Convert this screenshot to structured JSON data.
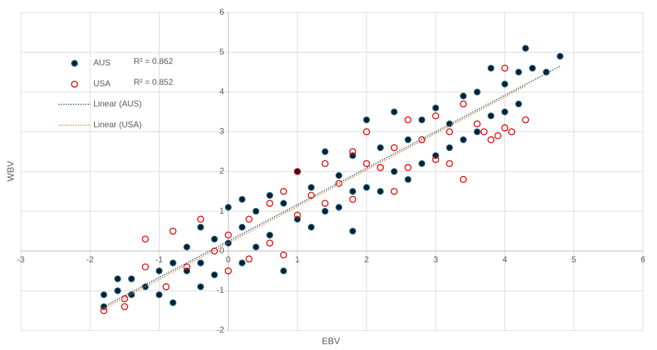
{
  "chart_data": {
    "type": "scatter",
    "x_label": "EBV",
    "y_label": "WBV",
    "xlim": [
      -3,
      6
    ],
    "ylim": [
      -2,
      6
    ],
    "xticks": [
      -3,
      -2,
      -1,
      0,
      1,
      2,
      3,
      4,
      5,
      6
    ],
    "yticks": [
      -2,
      -1,
      0,
      1,
      2,
      3,
      4,
      5,
      6
    ],
    "grid": true,
    "legend": "upper-left",
    "series": [
      {
        "name": "AUS",
        "color": "#0b1f2e",
        "edge": "#2a6f8f",
        "r2_label": "R² = 0.862",
        "x": [
          -1.8,
          -1.8,
          -1.6,
          -1.6,
          -1.4,
          -1.4,
          -1.2,
          -1.0,
          -1.0,
          -0.8,
          -0.8,
          -0.6,
          -0.6,
          -0.4,
          -0.4,
          -0.2,
          -0.2,
          0.0,
          0.0,
          0.2,
          0.2,
          0.4,
          0.4,
          0.6,
          0.6,
          0.8,
          0.8,
          1.0,
          1.0,
          1.2,
          1.2,
          1.4,
          1.4,
          1.6,
          1.6,
          1.8,
          1.8,
          2.0,
          2.0,
          2.2,
          2.2,
          2.4,
          2.4,
          2.6,
          2.6,
          2.8,
          2.8,
          3.0,
          3.0,
          3.2,
          3.2,
          3.4,
          3.4,
          3.6,
          3.6,
          3.8,
          3.8,
          4.0,
          4.0,
          4.2,
          4.2,
          4.3,
          4.4,
          4.6,
          4.8,
          1.8,
          -0.4,
          0.2
        ],
        "values": [
          -1.4,
          -1.1,
          -1.0,
          -0.7,
          -0.7,
          -1.1,
          -0.9,
          -0.5,
          -1.1,
          -1.3,
          -0.3,
          -0.5,
          0.1,
          -0.3,
          0.6,
          0.3,
          -0.6,
          0.2,
          1.1,
          0.6,
          -0.3,
          1.0,
          0.1,
          1.4,
          0.4,
          1.2,
          -0.5,
          2.0,
          0.8,
          1.6,
          0.6,
          2.5,
          1.0,
          1.9,
          1.1,
          2.4,
          1.5,
          3.3,
          1.6,
          2.6,
          1.5,
          3.5,
          2.0,
          2.8,
          1.8,
          3.3,
          2.2,
          3.6,
          2.4,
          3.2,
          2.6,
          3.9,
          2.8,
          4.0,
          3.0,
          4.6,
          3.4,
          4.2,
          3.5,
          4.5,
          3.7,
          5.1,
          4.6,
          4.5,
          4.9,
          0.5,
          -0.9,
          1.3
        ]
      },
      {
        "name": "USA",
        "color": "#e00000",
        "edge": "#e00000",
        "r2_label": "R² = 0.852",
        "x": [
          -1.8,
          -1.5,
          -1.5,
          -1.2,
          -1.2,
          -0.8,
          -0.9,
          -0.6,
          -0.4,
          -0.2,
          0.0,
          0.0,
          0.3,
          0.3,
          0.6,
          0.6,
          0.8,
          0.8,
          1.0,
          1.0,
          1.2,
          1.4,
          1.4,
          1.6,
          1.8,
          1.8,
          2.0,
          2.0,
          2.2,
          2.4,
          2.4,
          2.6,
          2.6,
          2.8,
          3.0,
          3.0,
          3.2,
          3.2,
          3.4,
          3.4,
          3.6,
          3.8,
          3.9,
          4.0,
          4.0,
          4.1,
          4.3,
          3.7
        ],
        "values": [
          -1.5,
          -1.4,
          -1.2,
          -0.4,
          0.3,
          0.5,
          -0.9,
          -0.4,
          0.8,
          0.0,
          0.4,
          -0.5,
          0.8,
          -0.2,
          1.2,
          0.2,
          -0.1,
          1.5,
          2.0,
          0.9,
          1.4,
          2.2,
          1.2,
          1.7,
          2.5,
          1.3,
          2.2,
          3.0,
          2.1,
          2.6,
          1.5,
          3.3,
          2.1,
          2.8,
          3.4,
          2.3,
          3.0,
          2.2,
          3.7,
          1.8,
          3.2,
          2.8,
          2.9,
          4.6,
          3.1,
          3.0,
          3.3,
          3.0
        ]
      }
    ],
    "trendlines": [
      {
        "name": "Linear (AUS)",
        "color": "#1f4e79",
        "x": [
          -1.8,
          4.8
        ],
        "values": [
          -1.4,
          4.65
        ]
      },
      {
        "name": "Linear (USA)",
        "color": "#ed7d31",
        "x": [
          -1.8,
          4.3
        ],
        "values": [
          -1.45,
          4.15
        ]
      }
    ]
  }
}
